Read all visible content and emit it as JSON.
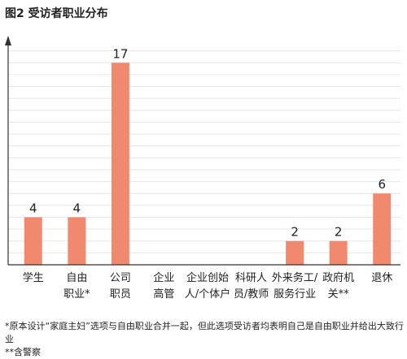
{
  "title": "图2 受访者职业分布",
  "chart_data": {
    "type": "bar",
    "title": "图2 受访者职业分布",
    "categories": [
      [
        "学生"
      ],
      [
        "自由",
        "职业*"
      ],
      [
        "公司",
        "职员"
      ],
      [
        "企业",
        "高管"
      ],
      [
        "企业创始",
        "人/个体户"
      ],
      [
        "科研人",
        "员/教师"
      ],
      [
        "外来务工/",
        "服务行业"
      ],
      [
        "政府机",
        "关**"
      ],
      [
        "退休"
      ]
    ],
    "values": [
      4,
      4,
      17,
      0,
      0,
      0,
      2,
      2,
      6
    ],
    "data_labels": [
      "4",
      "4",
      "17",
      "",
      "",
      "",
      "2",
      "2",
      "6"
    ],
    "ylim": [
      0,
      19
    ],
    "grid": true,
    "bar_color": "#f0896d"
  },
  "notes": [
    "*原本设计“家庭主妇”选项与自由职业合并一起，但此选项受访者均表明自己是自由职业并给出大致行业",
    "**含警察"
  ]
}
